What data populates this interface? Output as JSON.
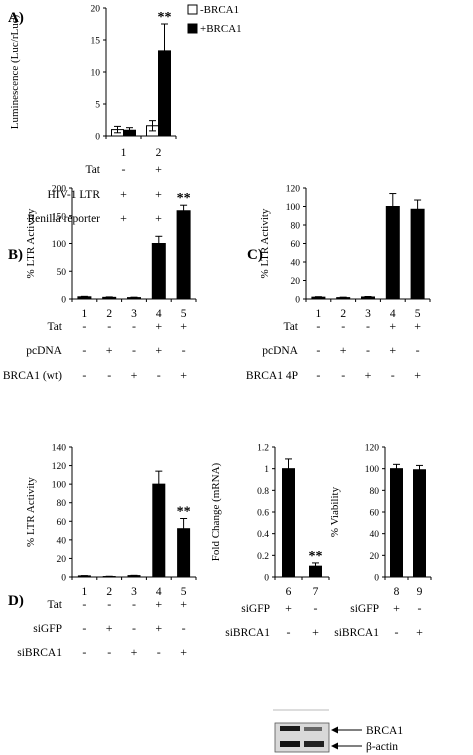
{
  "chart_data": [
    {
      "type": "bar",
      "panel_label": "A)",
      "ylabel": "Luminescence (Luc/rLuc)",
      "ylim": [
        0,
        20
      ],
      "yticks": [
        "0",
        "5",
        "10",
        "15",
        "20"
      ],
      "categories": [
        "1",
        "2"
      ],
      "series": [
        {
          "name": "-BRCA1",
          "color": "#ffffff",
          "values": [
            1.0,
            1.6
          ],
          "errors": [
            0.5,
            0.8
          ]
        },
        {
          "name": "+BRCA1",
          "color": "#000000",
          "values": [
            0.9,
            13.3
          ],
          "errors": [
            0.4,
            4.2
          ]
        }
      ],
      "significance": [
        {
          "category_index": 1,
          "label": "**"
        }
      ],
      "rows": [
        {
          "label": "Tat",
          "signs": [
            "-",
            "+"
          ]
        },
        {
          "label": "HIV-1 LTR",
          "signs": [
            "+",
            "+"
          ]
        },
        {
          "label": "Renilla reporter",
          "signs": [
            "+",
            "+"
          ]
        }
      ]
    },
    {
      "type": "bar",
      "panel_label": "B)",
      "ylabel": "% LTR Activity",
      "ylim": [
        0,
        200
      ],
      "yticks": [
        "0",
        "50",
        "100",
        "150",
        "200"
      ],
      "categories": [
        "1",
        "2",
        "3",
        "4",
        "5"
      ],
      "series": [
        {
          "values": [
            4,
            3,
            2.5,
            100,
            159
          ],
          "errors": [
            0.8,
            0.8,
            0.8,
            13,
            10
          ]
        }
      ],
      "significance": [
        {
          "category_index": 4,
          "label": "**"
        }
      ],
      "rows": [
        {
          "label": "Tat",
          "signs": [
            "-",
            "-",
            "-",
            "+",
            "+"
          ]
        },
        {
          "label": "pcDNA",
          "signs": [
            "-",
            "+",
            "-",
            "+",
            "-"
          ]
        },
        {
          "label": "BRCA1 (wt)",
          "signs": [
            "-",
            "-",
            "+",
            "-",
            "+"
          ]
        }
      ]
    },
    {
      "type": "bar",
      "panel_label": "C)",
      "ylabel": "% LTR Activity",
      "ylim": [
        0,
        120
      ],
      "yticks": [
        "0",
        "20",
        "40",
        "60",
        "80",
        "100",
        "120"
      ],
      "categories": [
        "1",
        "2",
        "3",
        "4",
        "5"
      ],
      "series": [
        {
          "values": [
            2,
            1.5,
            2.2,
            100,
            97
          ],
          "errors": [
            0.5,
            0.5,
            0.5,
            14,
            10
          ]
        }
      ],
      "significance": [],
      "rows": [
        {
          "label": "Tat",
          "signs": [
            "-",
            "-",
            "-",
            "+",
            "+"
          ]
        },
        {
          "label": "pcDNA",
          "signs": [
            "-",
            "+",
            "-",
            "+",
            "-"
          ]
        },
        {
          "label": "BRCA1 4P",
          "signs": [
            "-",
            "-",
            "+",
            "-",
            "+"
          ]
        }
      ]
    },
    {
      "type": "bar",
      "panel_label": "D)",
      "ylabel": "% LTR Activity",
      "ylim": [
        0,
        140
      ],
      "yticks": [
        "0",
        "20",
        "40",
        "60",
        "80",
        "100",
        "120",
        "140"
      ],
      "categories": [
        "1",
        "2",
        "3",
        "4",
        "5"
      ],
      "series": [
        {
          "values": [
            1.2,
            0.5,
            1.5,
            100,
            52
          ],
          "errors": [
            0.3,
            0.3,
            0.3,
            14,
            11
          ]
        }
      ],
      "significance": [
        {
          "category_index": 4,
          "label": "**"
        }
      ],
      "rows": [
        {
          "label": "Tat",
          "signs": [
            "-",
            "-",
            "-",
            "+",
            "+"
          ]
        },
        {
          "label": "siGFP",
          "signs": [
            "-",
            "+",
            "-",
            "+",
            "-"
          ]
        },
        {
          "label": "siBRCA1",
          "signs": [
            "-",
            "-",
            "+",
            "-",
            "+"
          ]
        }
      ]
    },
    {
      "type": "bar",
      "ylabel": "Fold Change (mRNA)",
      "ylim": [
        0,
        1.2
      ],
      "yticks": [
        "0",
        "0.2",
        "0.4",
        "0.6",
        "0.8",
        "1",
        "1.2"
      ],
      "categories": [
        "6",
        "7"
      ],
      "series": [
        {
          "values": [
            1.0,
            0.1
          ],
          "errors": [
            0.09,
            0.03
          ]
        }
      ],
      "significance": [
        {
          "category_index": 1,
          "label": "**"
        }
      ],
      "rows": [
        {
          "label": "siGFP",
          "signs": [
            "+",
            "-"
          ]
        },
        {
          "label": "siBRCA1",
          "signs": [
            "-",
            "+"
          ]
        }
      ]
    },
    {
      "type": "bar",
      "ylabel": "% Viability",
      "ylim": [
        0,
        120
      ],
      "yticks": [
        "0",
        "20",
        "40",
        "60",
        "80",
        "100",
        "120"
      ],
      "categories": [
        "8",
        "9"
      ],
      "series": [
        {
          "values": [
            100,
            99
          ],
          "errors": [
            4,
            4
          ]
        }
      ],
      "significance": [],
      "rows": [
        {
          "label": "siGFP",
          "signs": [
            "+",
            "-"
          ]
        },
        {
          "label": "siBRCA1",
          "signs": [
            "-",
            "+"
          ]
        }
      ]
    }
  ],
  "western_blot": {
    "labels": [
      "BRCA1",
      "β-actin"
    ]
  }
}
